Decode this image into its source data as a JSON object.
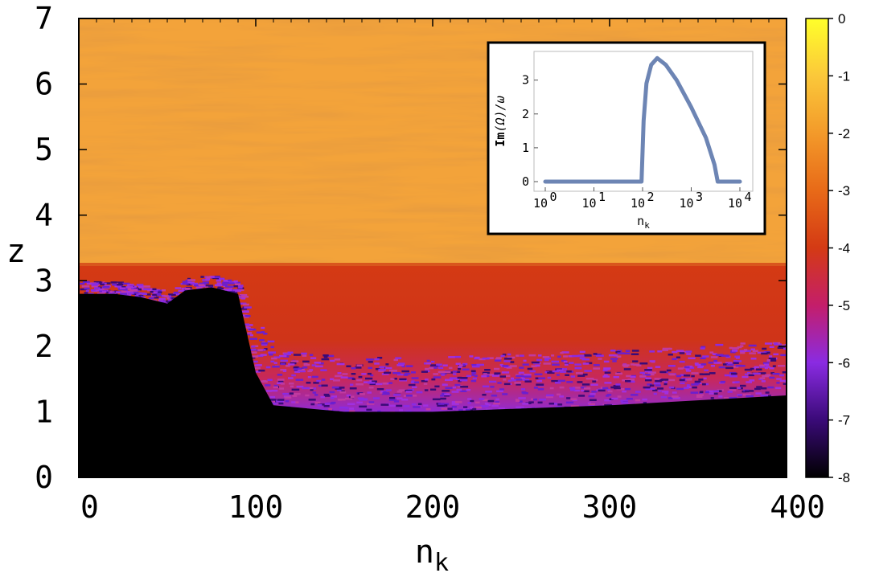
{
  "chart_data": [
    {
      "type": "heatmap",
      "title": "",
      "xlabel": "n_k",
      "ylabel": "z",
      "xlim": [
        0,
        400
      ],
      "ylim": [
        0,
        7
      ],
      "x_ticks": [
        "0",
        "100",
        "200",
        "300",
        "400"
      ],
      "y_ticks": [
        "0",
        "1",
        "2",
        "3",
        "4",
        "5",
        "6",
        "7"
      ],
      "colorbar": {
        "range": [
          -8,
          0
        ],
        "ticks": [
          "0",
          "-1",
          "-2",
          "-3",
          "-4",
          "-5",
          "-6",
          "-7",
          "-8"
        ],
        "colors": [
          "#000000",
          "#3a0a78",
          "#8a2be2",
          "#c41e6a",
          "#d43a14",
          "#e86a18",
          "#f39a2a",
          "#fbc83a",
          "#ffff2a"
        ]
      },
      "regions": {
        "upper_band": {
          "z_from": 3.2,
          "z_to": 7,
          "level": -1.8
        },
        "middle_band": {
          "z_from_approx": 2.0,
          "z_to": 3.2,
          "level": -3.6
        },
        "boundary_low": {
          "level": -6.0
        },
        "lower_region": {
          "level": -8
        }
      },
      "black_region_top_z": [
        {
          "n_k": 0,
          "z": 2.8
        },
        {
          "n_k": 20,
          "z": 2.8
        },
        {
          "n_k": 35,
          "z": 2.75
        },
        {
          "n_k": 50,
          "z": 2.65
        },
        {
          "n_k": 60,
          "z": 2.85
        },
        {
          "n_k": 75,
          "z": 2.9
        },
        {
          "n_k": 90,
          "z": 2.8
        },
        {
          "n_k": 100,
          "z": 1.6
        },
        {
          "n_k": 110,
          "z": 1.1
        },
        {
          "n_k": 150,
          "z": 1.0
        },
        {
          "n_k": 200,
          "z": 1.0
        },
        {
          "n_k": 300,
          "z": 1.1
        },
        {
          "n_k": 400,
          "z": 1.25
        }
      ]
    },
    {
      "type": "line",
      "title": "",
      "xlabel": "n_k",
      "ylabel": "Im(Ω)/ω",
      "xscale": "log",
      "xlim": [
        1,
        10000
      ],
      "ylim": [
        -0.2,
        3.8
      ],
      "x_tick_exponents": [
        "0",
        "1",
        "2",
        "3",
        "4"
      ],
      "y_ticks": [
        "0",
        "1",
        "2",
        "3"
      ],
      "series": [
        {
          "color": "#6d85b4",
          "x": [
            1,
            10,
            95,
            100,
            105,
            120,
            150,
            200,
            300,
            500,
            1000,
            2000,
            3000,
            3500,
            10000
          ],
          "y": [
            0,
            0,
            0,
            0.9,
            1.8,
            2.9,
            3.45,
            3.65,
            3.45,
            3.0,
            2.2,
            1.3,
            0.5,
            0,
            0
          ]
        }
      ]
    }
  ]
}
